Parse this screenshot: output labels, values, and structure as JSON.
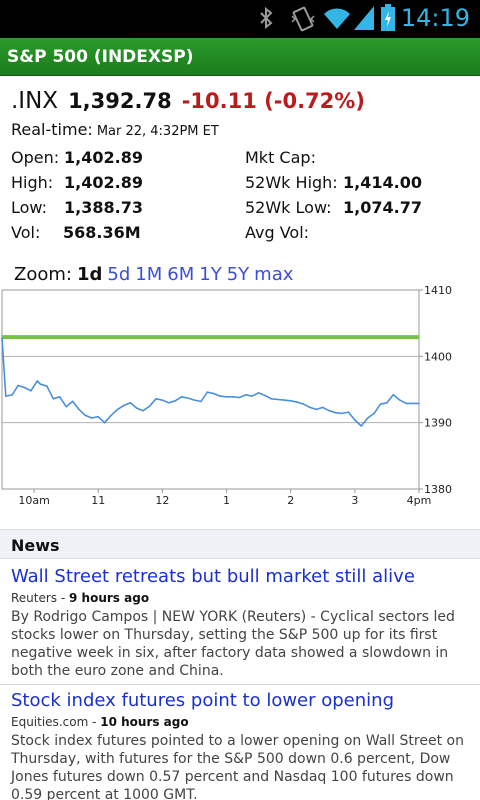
{
  "status_bar": {
    "time": "14:19",
    "icons": [
      "bluetooth-icon",
      "vibrate-icon",
      "wifi-icon",
      "signal-icon",
      "battery-charging-icon"
    ],
    "accent": "#33b5e5"
  },
  "header": {
    "title": "S&P 500 (INDEXSP)",
    "color": "#1f8a1f"
  },
  "quote": {
    "symbol": ".INX",
    "price": "1,392.78",
    "change": "-10.11 (-0.72%)",
    "change_color": "#b81c1c",
    "realtime_label": "Real-time:",
    "realtime_value": "Mar 22, 4:32PM ET"
  },
  "stats": {
    "open_label": "Open:",
    "open": "1,402.89",
    "high_label": "High:",
    "high": "1,402.89",
    "low_label": "Low:",
    "low": "1,388.73",
    "vol_label": "Vol:",
    "vol": "568.36M",
    "mktcap_label": "Mkt Cap:",
    "mktcap": "",
    "wk52high_label": "52Wk High:",
    "wk52high": "1,414.00",
    "wk52low_label": "52Wk Low:",
    "wk52low": "1,074.77",
    "avgvol_label": "Avg Vol:",
    "avgvol": ""
  },
  "zoom": {
    "label": "Zoom:",
    "options": [
      "1d",
      "5d",
      "1M",
      "6M",
      "1Y",
      "5Y",
      "max"
    ],
    "selected": "1d"
  },
  "chart_data": {
    "type": "line",
    "title": "",
    "xlabel": "",
    "ylabel": "",
    "ylim": [
      1380,
      1410
    ],
    "xlim": [
      9.5,
      16
    ],
    "x_ticks": [
      {
        "label": "10am",
        "value": 10
      },
      {
        "label": "11",
        "value": 11
      },
      {
        "label": "12",
        "value": 12
      },
      {
        "label": "1",
        "value": 13
      },
      {
        "label": "2",
        "value": 14
      },
      {
        "label": "3",
        "value": 15
      },
      {
        "label": "4pm",
        "value": 16
      }
    ],
    "y_ticks": [
      1410,
      1400,
      1390,
      1380
    ],
    "grid": true,
    "reference_line": {
      "value": 1402.89,
      "color": "#7ac143"
    },
    "series": [
      {
        "color": "#4a90d9",
        "x": [
          9.5,
          9.56,
          9.66,
          9.75,
          9.85,
          9.95,
          10.05,
          10.1,
          10.2,
          10.3,
          10.4,
          10.5,
          10.6,
          10.7,
          10.8,
          10.9,
          11.0,
          11.1,
          11.2,
          11.3,
          11.4,
          11.5,
          11.6,
          11.7,
          11.8,
          11.9,
          12.0,
          12.1,
          12.2,
          12.3,
          12.4,
          12.5,
          12.6,
          12.7,
          12.8,
          12.9,
          13.0,
          13.1,
          13.2,
          13.3,
          13.4,
          13.5,
          13.6,
          13.7,
          13.8,
          13.9,
          14.0,
          14.1,
          14.2,
          14.3,
          14.4,
          14.5,
          14.6,
          14.7,
          14.8,
          14.9,
          15.0,
          15.1,
          15.2,
          15.3,
          15.4,
          15.5,
          15.6,
          15.7,
          15.8,
          15.9,
          16.0
        ],
        "y": [
          1402.8,
          1394.0,
          1394.2,
          1395.6,
          1395.3,
          1394.8,
          1396.3,
          1395.8,
          1395.5,
          1393.6,
          1393.9,
          1392.4,
          1393.2,
          1392.0,
          1391.1,
          1390.7,
          1390.9,
          1390.0,
          1391.1,
          1392.0,
          1392.6,
          1393.0,
          1392.2,
          1391.8,
          1392.5,
          1393.6,
          1393.4,
          1393.0,
          1393.3,
          1393.9,
          1393.7,
          1393.4,
          1393.2,
          1394.6,
          1394.4,
          1394.0,
          1393.9,
          1393.9,
          1393.8,
          1394.2,
          1394.0,
          1394.5,
          1394.1,
          1393.6,
          1393.5,
          1393.4,
          1393.3,
          1393.1,
          1392.8,
          1392.3,
          1392.0,
          1392.3,
          1391.8,
          1391.5,
          1391.4,
          1391.6,
          1390.4,
          1389.5,
          1390.7,
          1391.4,
          1392.8,
          1393.0,
          1394.2,
          1393.4,
          1392.9,
          1392.9,
          1392.9
        ]
      }
    ]
  },
  "news": {
    "header": "News",
    "articles": [
      {
        "headline": "Wall Street retreats but bull market still alive",
        "source": "Reuters",
        "time": "9 hours ago",
        "snippet": "By Rodrigo Campos | NEW YORK (Reuters) - Cyclical sectors led stocks lower on Thursday, setting the S&P 500 up for its first negative week in six, after factory data showed a slowdown in both the euro zone and China."
      },
      {
        "headline": "Stock index futures point to lower opening",
        "source": "Equities.com",
        "time": "10 hours ago",
        "snippet": "Stock index futures pointed to a lower opening on Wall Street on Thursday, with futures for the S&P 500 down 0.6 percent, Dow Jones futures down 0.57 percent and Nasdaq 100 futures down 0.59 percent at 1000 GMT."
      }
    ]
  }
}
